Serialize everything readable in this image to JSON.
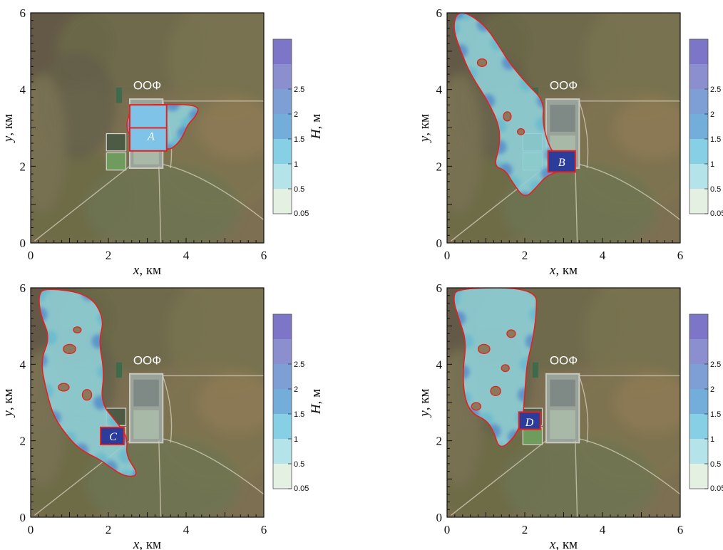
{
  "chart_data": [
    {
      "type": "heatmap",
      "panel": "top-left",
      "xlabel": "x, км",
      "ylabel": "y, км",
      "xlim": [
        0,
        6
      ],
      "ylim": [
        0,
        6
      ],
      "x_ticks": [
        "0",
        "2",
        "4",
        "6"
      ],
      "y_ticks": [
        "0",
        "2",
        "4",
        "6"
      ],
      "facility_label": "ООФ",
      "reservoir_label": "A",
      "flood_extent": "around reservoir A and east of ООФ",
      "colorbar": {
        "label": "H, м",
        "levels": [
          "0.05",
          "0.5",
          "1",
          "1.5",
          "2",
          "2.5"
        ]
      }
    },
    {
      "type": "heatmap",
      "panel": "top-right",
      "xlabel": "x, км",
      "ylabel": "y, км",
      "xlim": [
        0,
        6
      ],
      "ylim": [
        0,
        6
      ],
      "x_ticks": [
        "0",
        "2",
        "4",
        "6"
      ],
      "y_ticks": [
        "0",
        "2",
        "4",
        "6"
      ],
      "facility_label": "ООФ",
      "reservoir_label": "B",
      "flood_extent": "north-west along valley from reservoir B",
      "colorbar": {
        "label": "H, м",
        "levels": [
          "0.05",
          "0.5",
          "1",
          "1.5",
          "2",
          "2.5"
        ]
      }
    },
    {
      "type": "heatmap",
      "panel": "bottom-left",
      "xlabel": "x, км",
      "ylabel": "y, км",
      "xlim": [
        0,
        6
      ],
      "ylim": [
        0,
        6
      ],
      "x_ticks": [
        "0",
        "2",
        "4",
        "6"
      ],
      "y_ticks": [
        "0",
        "2",
        "4",
        "6"
      ],
      "facility_label": "ООФ",
      "reservoir_label": "C",
      "flood_extent": "wide area west and north-west of reservoir C",
      "colorbar": {
        "label": "H, м",
        "levels": [
          "0.05",
          "0.5",
          "1",
          "1.5",
          "2",
          "2.5"
        ]
      }
    },
    {
      "type": "heatmap",
      "panel": "bottom-right",
      "xlabel": "x, км",
      "ylabel": "y, км",
      "xlim": [
        0,
        6
      ],
      "ylim": [
        0,
        6
      ],
      "x_ticks": [
        "0",
        "2",
        "4",
        "6"
      ],
      "y_ticks": [
        "0",
        "2",
        "4",
        "6"
      ],
      "facility_label": "ООФ",
      "reservoir_label": "D",
      "flood_extent": "wide area west and north-west of reservoir D",
      "colorbar": {
        "label": "H, м",
        "levels": [
          "0.05",
          "0.5",
          "1",
          "1.5",
          "2",
          "2.5"
        ]
      }
    }
  ],
  "colors": {
    "colorbar_bands": [
      "#e4f0e2",
      "#b4e3ea",
      "#86cfe4",
      "#72aed9",
      "#7e9fd6",
      "#8b8fd0",
      "#7d75c8"
    ],
    "flood_outline": "#e8201e",
    "reservoir_fill": "#2b3c9a",
    "terrain_base": "#7c6f52"
  }
}
